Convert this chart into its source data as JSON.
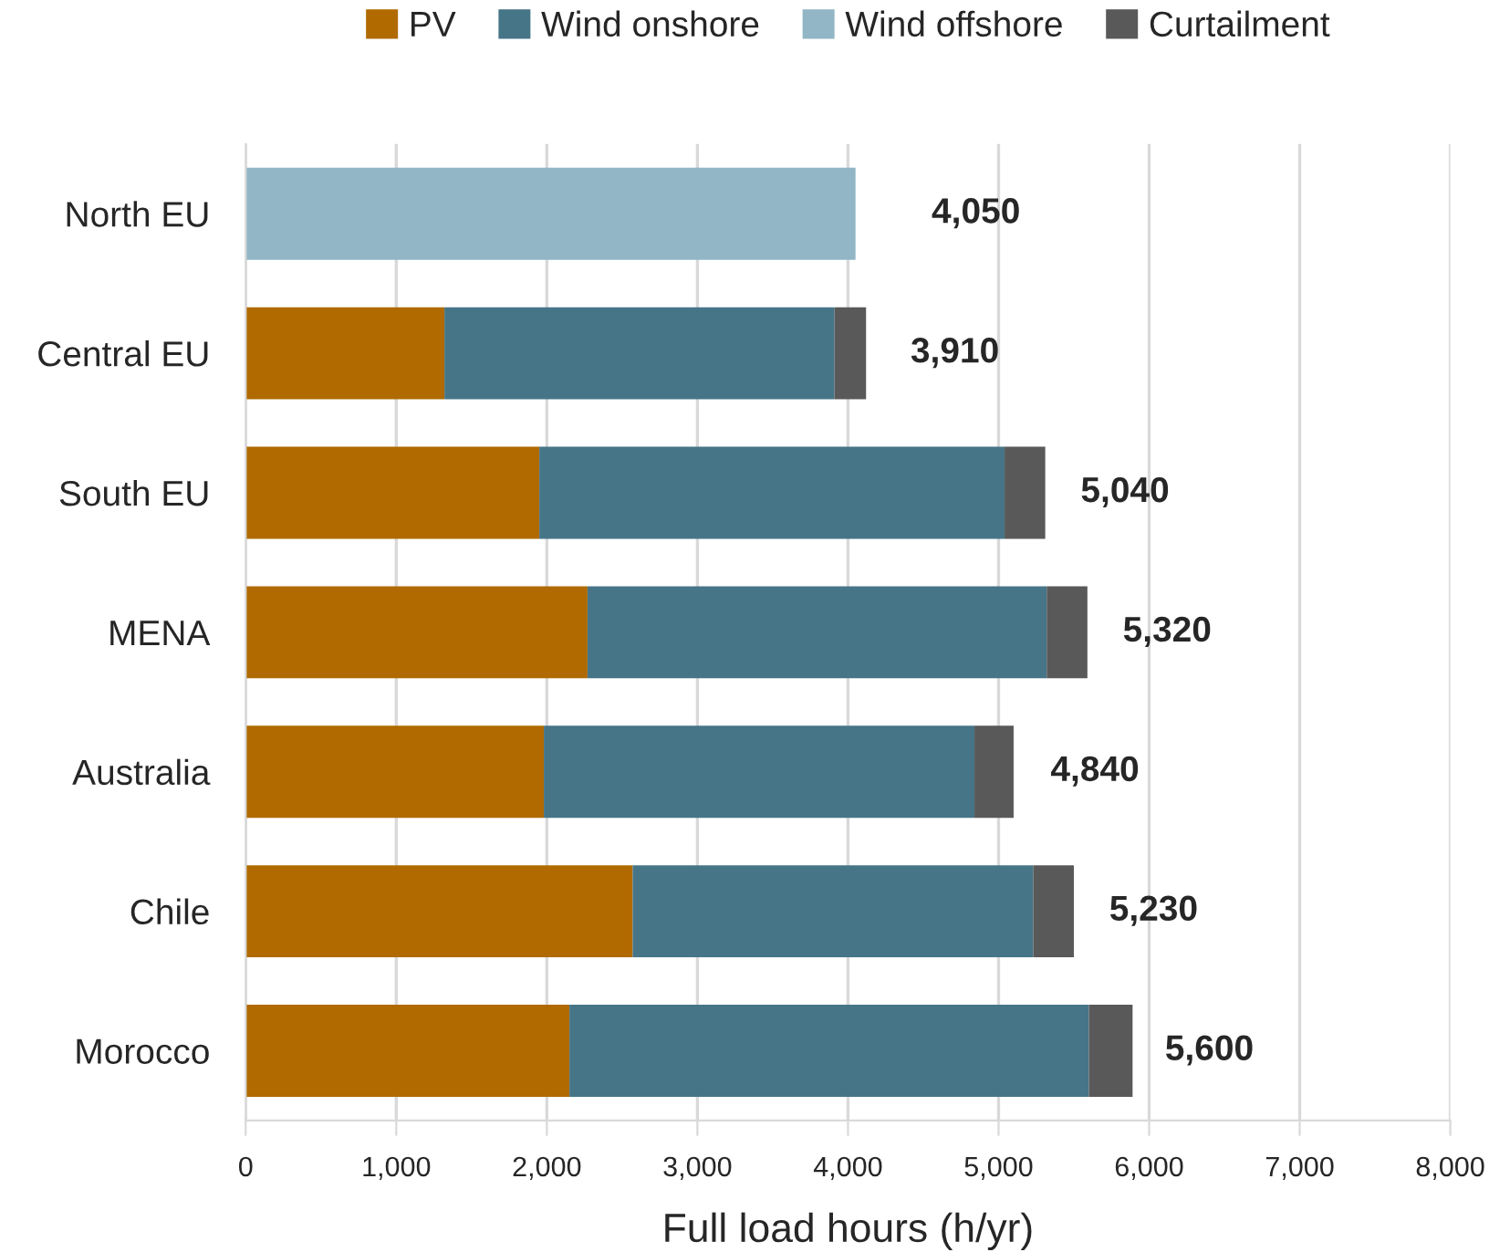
{
  "chart_data": {
    "type": "bar",
    "orientation": "horizontal",
    "stacked": true,
    "xlabel": "Full load hours (h/yr)",
    "categories": [
      "North EU",
      "Central EU",
      "South EU",
      "MENA",
      "Australia",
      "Chile",
      "Morocco"
    ],
    "series": [
      {
        "name": "PV",
        "color": "#b06a00",
        "values": [
          null,
          1320,
          1950,
          2270,
          1980,
          2570,
          2150
        ]
      },
      {
        "name": "Wind onshore",
        "color": "#467587",
        "values": [
          null,
          2590,
          3090,
          3050,
          2860,
          2660,
          3450
        ]
      },
      {
        "name": "Wind offshore",
        "color": "#92b6c6",
        "values": [
          4050,
          null,
          null,
          null,
          null,
          null,
          null
        ]
      },
      {
        "name": "Curtailment",
        "color": "#595959",
        "values": [
          null,
          210,
          270,
          270,
          260,
          270,
          290
        ]
      }
    ],
    "annotations": [
      {
        "text": "4,050",
        "x": 4050,
        "y": "North EU"
      },
      {
        "text": "3,910",
        "x": 3910,
        "y": "Central EU"
      },
      {
        "text": "5,040",
        "x": 5040,
        "y": "South EU"
      },
      {
        "text": "5,320",
        "x": 5320,
        "y": "MENA"
      },
      {
        "text": "4,840",
        "x": 4840,
        "y": "Australia"
      },
      {
        "text": "5,230",
        "x": 5230,
        "y": "Chile"
      },
      {
        "text": "5,600",
        "x": 5600,
        "y": "Morocco"
      }
    ],
    "xlim": [
      0,
      8000
    ],
    "xticks": [
      {
        "value": 0,
        "label": "0"
      },
      {
        "value": 1000,
        "label": "1,000"
      },
      {
        "value": 2000,
        "label": "2,000"
      },
      {
        "value": 3000,
        "label": "3,000"
      },
      {
        "value": 4000,
        "label": "4,000"
      },
      {
        "value": 5000,
        "label": "5,000"
      },
      {
        "value": 6000,
        "label": "6,000"
      },
      {
        "value": 7000,
        "label": "7,000"
      },
      {
        "value": 8000,
        "label": "8,000"
      }
    ],
    "grid": "x",
    "legend": "top"
  }
}
